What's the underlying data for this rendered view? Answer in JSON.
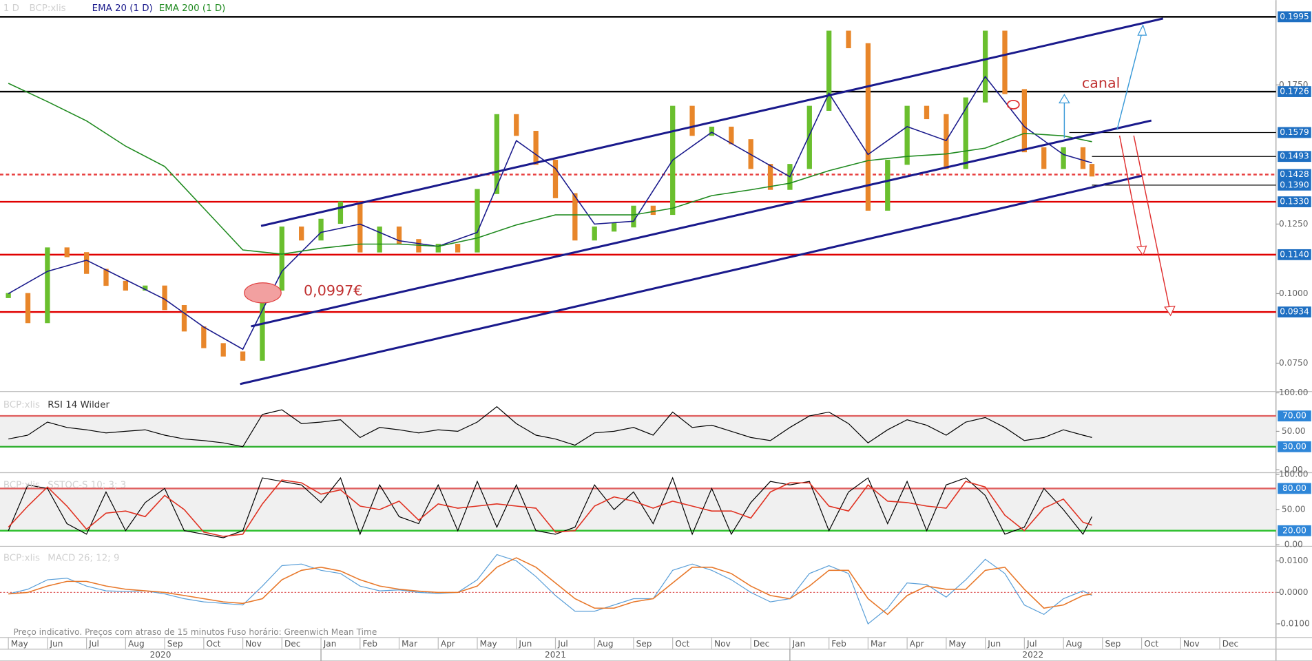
{
  "chart_data": [
    {
      "type": "line",
      "interval": "1 D",
      "xlim": [
        -0.214,
        32.44
      ],
      "ylim": [
        0.0654,
        0.2055
      ],
      "x": [
        0,
        0.5,
        1,
        1.5,
        2,
        2.5,
        3,
        3.5,
        4,
        4.5,
        5,
        5.5,
        6,
        6.5,
        7,
        7.5,
        8,
        8.5,
        9,
        9.5,
        10,
        10.5,
        11,
        11.5,
        12,
        12.5,
        13,
        13.5,
        14,
        14.5,
        15,
        15.5,
        16,
        16.5,
        17,
        17.5,
        18,
        18.5,
        19,
        19.5,
        20,
        20.5,
        21,
        21.5,
        22,
        22.5,
        23,
        23.5,
        24,
        24.5,
        25,
        25.5,
        26,
        26.5,
        27,
        27.5,
        27.73
      ],
      "series": [
        {
          "name": "BCP:xlis",
          "style": "bars",
          "color": "#6abf2e",
          "down_color": "#e8862a",
          "values": [
            0.0993,
            0.0903,
            0.1157,
            0.114,
            0.108,
            0.1037,
            0.102,
            0.102,
            0.095,
            0.0873,
            0.0813,
            0.0783,
            0.0768,
            0.102,
            0.1232,
            0.12,
            0.126,
            0.1322,
            0.1157,
            0.1232,
            0.1187,
            0.1157,
            0.117,
            0.1157,
            0.1367,
            0.1636,
            0.1576,
            0.1472,
            0.1352,
            0.12,
            0.1232,
            0.1247,
            0.1307,
            0.1292,
            0.1666,
            0.1576,
            0.1591,
            0.1546,
            0.1457,
            0.1382,
            0.1457,
            0.1666,
            0.1936,
            0.1891,
            0.1307,
            0.1472,
            0.1666,
            0.1636,
            0.1457,
            0.1696,
            0.1936,
            0.1726,
            0.1517,
            0.1457,
            0.1517,
            0.1457,
            0.143
          ]
        },
        {
          "name": "EMA 20  (1 D)",
          "style": "line",
          "color": "#1a1a8c",
          "x": [
            0,
            1,
            2,
            3,
            4,
            5,
            6,
            7,
            8,
            9,
            10,
            11,
            12,
            13,
            14,
            15,
            16,
            17,
            18,
            19,
            20,
            21,
            22,
            23,
            24,
            25,
            26,
            27,
            27.73
          ],
          "values": [
            0.1,
            0.108,
            0.112,
            0.105,
            0.098,
            0.088,
            0.08,
            0.108,
            0.122,
            0.125,
            0.119,
            0.117,
            0.122,
            0.155,
            0.145,
            0.125,
            0.126,
            0.148,
            0.158,
            0.15,
            0.142,
            0.172,
            0.15,
            0.16,
            0.155,
            0.178,
            0.16,
            0.15,
            0.147
          ]
        },
        {
          "name": "EMA 200  (1 D)",
          "style": "line",
          "color": "#1f8a1f",
          "x": [
            0,
            1,
            2,
            3,
            4,
            5,
            6,
            7,
            8,
            9,
            10,
            11,
            12,
            13,
            14,
            15,
            16,
            17,
            18,
            19,
            20,
            21,
            22,
            23,
            24,
            25,
            26,
            27,
            27.73
          ],
          "values": [
            0.1756,
            0.169,
            0.1621,
            0.153,
            0.1457,
            0.1307,
            0.1157,
            0.1142,
            0.1163,
            0.1178,
            0.1178,
            0.117,
            0.12,
            0.1247,
            0.1283,
            0.1283,
            0.1283,
            0.1307,
            0.1352,
            0.1373,
            0.1397,
            0.1442,
            0.1478,
            0.1493,
            0.1502,
            0.1523,
            0.1576,
            0.1567,
            0.1546
          ]
        }
      ],
      "yticks": [
        {
          "value": 0.075,
          "label": "0.0750"
        },
        {
          "value": 0.1,
          "label": "0.1000"
        },
        {
          "value": 0.125,
          "label": "0.1250"
        },
        {
          "value": 0.175,
          "label": "0.1750"
        }
      ],
      "levels": [
        {
          "value": 0.1995,
          "label": "0.1995",
          "color": "#000000",
          "line": "solid"
        },
        {
          "value": 0.1726,
          "label": "0.1726",
          "color": "#000000",
          "line": "solid"
        },
        {
          "value": 0.1579,
          "label": "0.1579",
          "color": "#000000",
          "line": "ray",
          "from": 27.15
        },
        {
          "value": 0.1493,
          "label": "0.1493",
          "color": "#000000",
          "line": "ray",
          "from": 27.73
        },
        {
          "value": 0.1428,
          "label": "0.1428",
          "color": "#e84040",
          "line": "dashed"
        },
        {
          "value": 0.139,
          "label": "0.1390",
          "color": "#000000",
          "line": "ray",
          "from": 27.73
        },
        {
          "value": 0.133,
          "label": "0.1330",
          "color": "#e00000",
          "line": "solid"
        },
        {
          "value": 0.114,
          "label": "0.1140",
          "color": "#e00000",
          "line": "solid"
        },
        {
          "value": 0.0934,
          "label": "0.0934",
          "color": "#e00000",
          "line": "solid"
        }
      ],
      "xticks": [
        {
          "value": 0,
          "label": "May"
        },
        {
          "value": 1,
          "label": "Jun"
        },
        {
          "value": 2,
          "label": "Jul"
        },
        {
          "value": 3,
          "label": "Aug"
        },
        {
          "value": 4,
          "label": "Sep"
        },
        {
          "value": 5,
          "label": "Oct"
        },
        {
          "value": 6,
          "label": "Nov"
        },
        {
          "value": 7,
          "label": "Dec"
        },
        {
          "value": 8,
          "label": "Jan"
        },
        {
          "value": 9,
          "label": "Feb"
        },
        {
          "value": 10,
          "label": "Mar"
        },
        {
          "value": 11,
          "label": "Apr"
        },
        {
          "value": 12,
          "label": "May"
        },
        {
          "value": 13,
          "label": "Jun"
        },
        {
          "value": 14,
          "label": "Jul"
        },
        {
          "value": 15,
          "label": "Aug"
        },
        {
          "value": 16,
          "label": "Sep"
        },
        {
          "value": 17,
          "label": "Oct"
        },
        {
          "value": 18,
          "label": "Nov"
        },
        {
          "value": 19,
          "label": "Dec"
        },
        {
          "value": 20,
          "label": "Jan"
        },
        {
          "value": 21,
          "label": "Feb"
        },
        {
          "value": 22,
          "label": "Mar"
        },
        {
          "value": 23,
          "label": "Apr"
        },
        {
          "value": 24,
          "label": "May"
        },
        {
          "value": 25,
          "label": "Jun"
        },
        {
          "value": 26,
          "label": "Jul"
        },
        {
          "value": 27,
          "label": "Aug"
        },
        {
          "value": 28,
          "label": "Sep"
        },
        {
          "value": 29,
          "label": "Oct"
        },
        {
          "value": 30,
          "label": "Nov"
        },
        {
          "value": 31,
          "label": "Dec"
        }
      ],
      "year_ticks": [
        {
          "value": -4,
          "label": "2020"
        },
        {
          "value": 8,
          "label": "2021"
        },
        {
          "value": 20,
          "label": "2022"
        }
      ],
      "annotations": [
        "canal",
        "0,0997€"
      ],
      "note": "Preço indicativo. Preços com atraso de 15 minutos    Fuso horário: Greenwich Mean Time"
    },
    {
      "type": "line",
      "symbol": "BCP:xlis",
      "title": "RSI 14 Wilder",
      "xlim": [
        -0.214,
        32.44
      ],
      "ylim": [
        -0.5,
        99.5
      ],
      "x": [
        0,
        0.5,
        1,
        1.5,
        2,
        2.5,
        3,
        3.5,
        4,
        4.5,
        5,
        5.5,
        6,
        6.5,
        7,
        7.5,
        8,
        8.5,
        9,
        9.5,
        10,
        10.5,
        11,
        11.5,
        12,
        12.5,
        13,
        13.5,
        14,
        14.5,
        15,
        15.5,
        16,
        16.5,
        17,
        17.5,
        18,
        18.5,
        19,
        19.5,
        20,
        20.5,
        21,
        21.5,
        22,
        22.5,
        23,
        23.5,
        24,
        24.5,
        25,
        25.5,
        26,
        26.5,
        27,
        27.5,
        27.73
      ],
      "series": [
        {
          "style": "line",
          "color": "#000000",
          "values": [
            40,
            45,
            62,
            55,
            52,
            48,
            50,
            52,
            45,
            40,
            38,
            35,
            30,
            72,
            78,
            60,
            62,
            65,
            42,
            55,
            52,
            48,
            52,
            50,
            62,
            82,
            60,
            45,
            40,
            32,
            48,
            50,
            55,
            45,
            75,
            55,
            58,
            50,
            42,
            38,
            55,
            70,
            75,
            60,
            35,
            52,
            65,
            58,
            45,
            62,
            68,
            55,
            38,
            42,
            52,
            45,
            42
          ]
        }
      ],
      "yticks": [
        {
          "value": 0,
          "label": "0.00"
        },
        {
          "value": 50,
          "label": "50.00"
        },
        {
          "value": 100,
          "label": "100.00"
        }
      ],
      "levels": [
        {
          "value": 70,
          "label": "70.00",
          "color": "#e06060",
          "line": "solid"
        },
        {
          "value": 30,
          "label": "30.00",
          "color": "#30b030",
          "line": "solid"
        }
      ]
    },
    {
      "type": "line",
      "symbol": "BCP:xlis",
      "title": "SSTOC-S 10; 3; 3",
      "xlim": [
        -0.214,
        32.44
      ],
      "ylim": [
        -1,
        100
      ],
      "x": [
        0,
        0.5,
        1,
        1.5,
        2,
        2.5,
        3,
        3.5,
        4,
        4.5,
        5,
        5.5,
        6,
        6.5,
        7,
        7.5,
        8,
        8.5,
        9,
        9.5,
        10,
        10.5,
        11,
        11.5,
        12,
        12.5,
        13,
        13.5,
        14,
        14.5,
        15,
        15.5,
        16,
        16.5,
        17,
        17.5,
        18,
        18.5,
        19,
        19.5,
        20,
        20.5,
        21,
        21.5,
        22,
        22.5,
        23,
        23.5,
        24,
        24.5,
        25,
        25.5,
        26,
        26.5,
        27,
        27.5,
        27.73
      ],
      "series": [
        {
          "style": "line",
          "color": "#000000",
          "values": [
            20,
            85,
            80,
            30,
            15,
            75,
            20,
            60,
            80,
            20,
            15,
            10,
            20,
            95,
            90,
            85,
            60,
            95,
            15,
            85,
            40,
            30,
            85,
            20,
            90,
            25,
            85,
            20,
            15,
            25,
            85,
            50,
            75,
            30,
            95,
            15,
            80,
            15,
            60,
            90,
            85,
            90,
            20,
            75,
            95,
            30,
            90,
            20,
            85,
            95,
            70,
            15,
            25,
            80,
            50,
            15,
            40
          ]
        },
        {
          "style": "line",
          "color": "#e03020",
          "values": [
            25,
            55,
            82,
            55,
            22,
            45,
            48,
            40,
            70,
            50,
            18,
            12,
            15,
            58,
            92,
            88,
            72,
            78,
            55,
            50,
            62,
            35,
            58,
            52,
            55,
            58,
            55,
            52,
            18,
            20,
            55,
            68,
            62,
            52,
            62,
            55,
            48,
            48,
            38,
            75,
            88,
            88,
            55,
            48,
            85,
            62,
            60,
            55,
            52,
            90,
            82,
            42,
            20,
            52,
            65,
            32,
            28
          ]
        }
      ],
      "yticks": [
        {
          "value": 0,
          "label": "0.00"
        },
        {
          "value": 50,
          "label": "50.00"
        },
        {
          "value": 100,
          "label": "100.00"
        }
      ],
      "levels": [
        {
          "value": 80,
          "label": "80.00",
          "color": "#e06060",
          "line": "solid"
        },
        {
          "value": 20,
          "label": "20.00",
          "color": "#30c030",
          "line": "solid"
        }
      ]
    },
    {
      "type": "line",
      "symbol": "BCP:xlis",
      "title": "MACD 26; 12; 9",
      "xlim": [
        -0.214,
        32.44
      ],
      "ylim": [
        -0.0138,
        0.0141
      ],
      "x": [
        0,
        0.5,
        1,
        1.5,
        2,
        2.5,
        3,
        3.5,
        4,
        4.5,
        5,
        5.5,
        6,
        6.5,
        7,
        7.5,
        8,
        8.5,
        9,
        9.5,
        10,
        10.5,
        11,
        11.5,
        12,
        12.5,
        13,
        13.5,
        14,
        14.5,
        15,
        15.5,
        16,
        16.5,
        17,
        17.5,
        18,
        18.5,
        19,
        19.5,
        20,
        20.5,
        21,
        21.5,
        22,
        22.5,
        23,
        23.5,
        24,
        24.5,
        25,
        25.5,
        26,
        26.5,
        27,
        27.5,
        27.73
      ],
      "series": [
        {
          "style": "line",
          "color": "#5a9fd8",
          "values": [
            -0.0005,
            0.001,
            0.004,
            0.0045,
            0.002,
            0.0005,
            0.0003,
            0.0005,
            -0.0005,
            -0.002,
            -0.003,
            -0.0035,
            -0.004,
            0.002,
            0.0085,
            0.009,
            0.007,
            0.006,
            0.002,
            0.0005,
            0.0008,
            0,
            -0.0003,
            0,
            0.004,
            0.012,
            0.01,
            0.005,
            -0.001,
            -0.006,
            -0.006,
            -0.004,
            -0.002,
            -0.002,
            0.007,
            0.009,
            0.007,
            0.004,
            0,
            -0.003,
            -0.002,
            0.006,
            0.0085,
            0.006,
            -0.01,
            -0.005,
            0.003,
            0.0025,
            -0.0015,
            0.004,
            0.0105,
            0.006,
            -0.004,
            -0.007,
            -0.002,
            0.0005,
            -0.001
          ]
        },
        {
          "style": "line",
          "color": "#e8782a",
          "values": [
            -0.0005,
            0,
            0.002,
            0.0035,
            0.0035,
            0.002,
            0.001,
            0.0005,
            0,
            -0.001,
            -0.002,
            -0.003,
            -0.0035,
            -0.002,
            0.004,
            0.007,
            0.008,
            0.0068,
            0.004,
            0.002,
            0.001,
            0.0004,
            0,
            0,
            0.002,
            0.008,
            0.011,
            0.008,
            0.003,
            -0.002,
            -0.005,
            -0.005,
            -0.003,
            -0.002,
            0.003,
            0.008,
            0.008,
            0.006,
            0.002,
            -0.001,
            -0.002,
            0.002,
            0.007,
            0.007,
            -0.002,
            -0.007,
            -0.001,
            0.002,
            0.001,
            0.001,
            0.007,
            0.008,
            0.001,
            -0.005,
            -0.004,
            -0.001,
            -0.0005
          ]
        }
      ],
      "yticks": [
        {
          "value": -0.01,
          "label": "-0.0100"
        },
        {
          "value": 0,
          "label": "0.0000"
        },
        {
          "value": 0.01,
          "label": "0.0100"
        }
      ],
      "levels": []
    }
  ]
}
